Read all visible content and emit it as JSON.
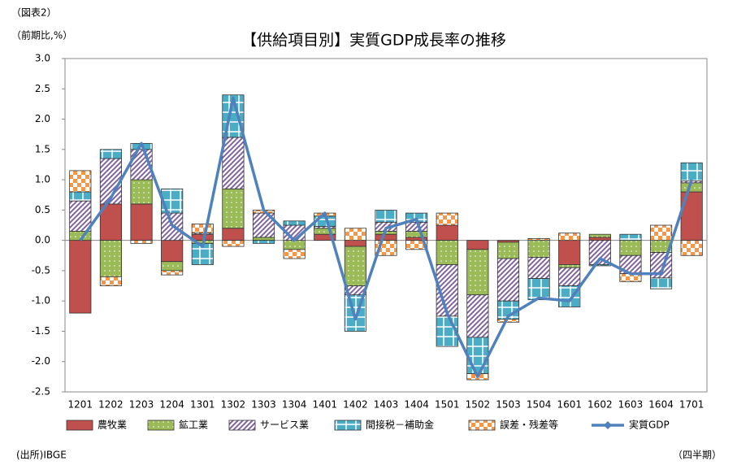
{
  "chart_data": {
    "type": "stacked_bar_line",
    "label_topleft": "（図表2）",
    "ylabel": "（前期比,%）",
    "title": "【供給項目別】実質GDP成長率の推移",
    "source": "(出所)IBGE",
    "xlabel": "（四半期）",
    "categories": [
      "1201",
      "1202",
      "1203",
      "1204",
      "1301",
      "1302",
      "1303",
      "1304",
      "1401",
      "1402",
      "1403",
      "1404",
      "1501",
      "1502",
      "1503",
      "1504",
      "1601",
      "1602",
      "1603",
      "1604",
      "1701"
    ],
    "ylim": [
      -2.5,
      3
    ],
    "yticks": [
      {
        "value": 3,
        "label": "3.0"
      },
      2.5,
      {
        "value": 2,
        "label": "2.0"
      },
      1.5,
      {
        "value": 1,
        "label": "1.0"
      },
      0.5,
      {
        "value": 0,
        "label": "0.0"
      },
      -0.5,
      {
        "value": -1,
        "label": "-1.0"
      },
      -1.5,
      {
        "value": -2,
        "label": "-2.0"
      },
      -2.5
    ],
    "series": [
      {
        "name": "農牧業",
        "color": "#c0504d",
        "pattern": "solid",
        "values": [
          -1.2,
          0.6,
          0.6,
          -0.35,
          0.1,
          0.2,
          0.0,
          0.0,
          0.1,
          -0.1,
          0.1,
          0.05,
          0.25,
          -0.15,
          -0.03,
          0.0,
          -0.4,
          0.05,
          0.0,
          0.0,
          0.8
        ]
      },
      {
        "name": "鉱工業",
        "color": "#9bbb59",
        "pattern": "dots",
        "values": [
          0.15,
          -0.6,
          0.4,
          -0.15,
          -0.05,
          0.65,
          0.05,
          -0.15,
          0.1,
          -0.65,
          0.05,
          0.1,
          -0.4,
          -0.75,
          -0.27,
          -0.28,
          -0.05,
          0.05,
          -0.25,
          -0.2,
          0.15
        ]
      },
      {
        "name": "サービス業",
        "color": "#8064a2",
        "pattern": "hatch",
        "values": [
          0.5,
          0.75,
          0.5,
          0.45,
          0.02,
          0.85,
          0.4,
          0.25,
          0.03,
          -0.15,
          0.15,
          0.15,
          -0.85,
          -0.7,
          -0.7,
          -0.35,
          -0.3,
          -0.4,
          -0.3,
          -0.42,
          0.03
        ]
      },
      {
        "name": "間接税－補助金",
        "color": "#4bacc6",
        "pattern": "grid",
        "values": [
          0.15,
          0.15,
          0.1,
          0.4,
          -0.35,
          0.7,
          -0.05,
          0.07,
          0.17,
          -0.6,
          0.2,
          0.15,
          -0.5,
          -0.6,
          -0.3,
          -0.35,
          -0.35,
          -0.02,
          0.1,
          -0.18,
          0.3
        ]
      },
      {
        "name": "誤差・残差等",
        "color": "#f79646",
        "pattern": "check",
        "values": [
          0.35,
          -0.15,
          -0.05,
          -0.07,
          0.15,
          -0.1,
          0.05,
          -0.15,
          0.05,
          0.2,
          -0.25,
          -0.15,
          0.2,
          -0.1,
          -0.05,
          0.03,
          0.12,
          0.0,
          -0.13,
          0.25,
          -0.25
        ]
      },
      {
        "name": "実質GDP",
        "color": "#4f81bd",
        "kind": "line",
        "values": [
          0.0,
          0.7,
          1.6,
          0.25,
          -0.1,
          2.35,
          0.5,
          0.0,
          0.45,
          -1.3,
          0.2,
          0.35,
          -1.2,
          -2.25,
          -1.25,
          -0.95,
          -1.0,
          -0.3,
          -0.55,
          -0.55,
          1.0
        ]
      }
    ]
  }
}
